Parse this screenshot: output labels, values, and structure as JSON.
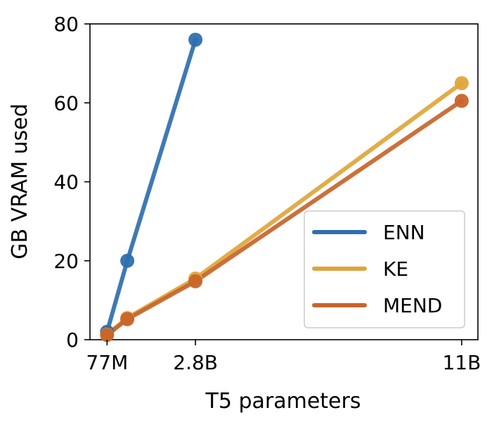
{
  "chart_data": {
    "type": "line",
    "xlabel": "T5 parameters",
    "ylabel": "GB VRAM used",
    "x_ticks": [
      {
        "label": "77M",
        "value": 0.077
      },
      {
        "label": "2.8B",
        "value": 2.8
      },
      {
        "label": "11B",
        "value": 11
      }
    ],
    "y_ticks": [
      0,
      20,
      40,
      60,
      80
    ],
    "xlim": [
      -0.45,
      11.5
    ],
    "ylim": [
      0,
      80
    ],
    "grid": false,
    "legend_position": "lower-right",
    "series": [
      {
        "name": "ENN",
        "color": "#2e6fae",
        "x": [
          0.077,
          0.7,
          2.8
        ],
        "y": [
          2,
          20,
          76
        ]
      },
      {
        "name": "KE",
        "color": "#dfa53a",
        "x": [
          0.077,
          0.7,
          2.8,
          11
        ],
        "y": [
          1.3,
          5.5,
          15.5,
          65
        ]
      },
      {
        "name": "MEND",
        "color": "#c8642a",
        "x": [
          0.077,
          0.7,
          2.8,
          11
        ],
        "y": [
          1.2,
          5.2,
          14.8,
          60.5
        ]
      }
    ]
  }
}
